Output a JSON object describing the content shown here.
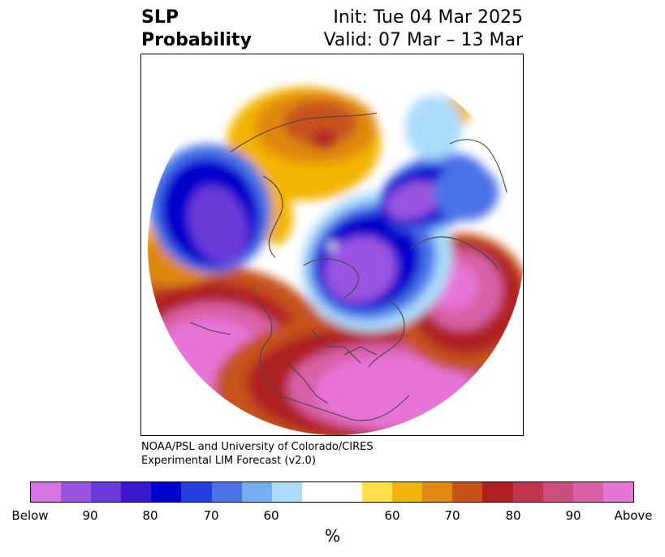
{
  "title": {
    "variable": "SLP",
    "product": "Probability",
    "init": "Init: Tue 04 Mar 2025",
    "valid": "Valid: 07 Mar – 13 Mar"
  },
  "credit": {
    "line1": "NOAA/PSL and University of Colorado/CIRES",
    "line2": "Experimental LIM Forecast (v2.0)"
  },
  "colorbar": {
    "colors": [
      "#d873e3",
      "#9a55e0",
      "#6b3ad8",
      "#3b17d0",
      "#0000cc",
      "#2340dc",
      "#4a72e8",
      "#72aef0",
      "#aadcfa",
      "#ffffff",
      "#ffffff",
      "#ffe04a",
      "#f3b400",
      "#e08810",
      "#c6521a",
      "#b02020",
      "#c0364e",
      "#cc4f7e",
      "#d860a6",
      "#e775d8"
    ],
    "tick_labels": [
      "Below",
      "90",
      "80",
      "70",
      "60",
      "60",
      "70",
      "80",
      "90",
      "Above"
    ],
    "unit": "%"
  },
  "map": {
    "palette": {
      "below_strong": "#9a55e0",
      "below_mid": "#6b3ad8",
      "below_core": "#0000cc",
      "below_edge": "#4a72e8",
      "below_weak": "#aadcfa",
      "above_weak": "#f3b400",
      "above_orange": "#e08810",
      "above_brown": "#c6521a",
      "above_red": "#b02020",
      "above_strong": "#d860a6",
      "above_max": "#e775d8",
      "coast": "#444444"
    }
  }
}
